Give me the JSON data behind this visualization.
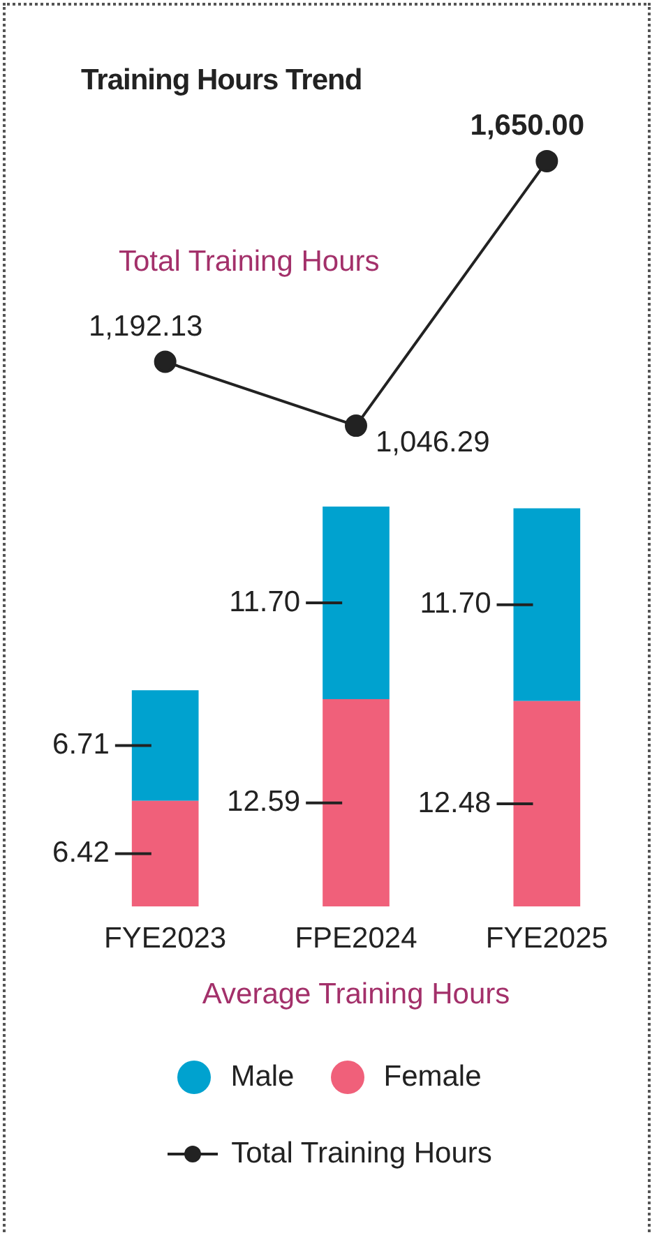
{
  "chart_data": [
    {
      "type": "line",
      "title": "Training Hours Trend",
      "subtitle": "Total Training Hours",
      "categories": [
        null,
        null,
        null
      ],
      "tick_labels": false,
      "legend": "bottom",
      "marker": "circle",
      "line_style": "solid",
      "data_labels": true,
      "series": [
        {
          "name": "Total Training Hours",
          "color": "#222222",
          "values": [
            1192.13,
            1046.29,
            1650.0
          ],
          "value_labels": [
            "1,192.13",
            "1,046.29",
            "1,650.00"
          ]
        }
      ]
    },
    {
      "type": "bar",
      "stacked": true,
      "xlabel": "Average Training Hours",
      "categories": [
        "FYE2023",
        "FPE2024",
        "FYE2025"
      ],
      "tick_labels": "x",
      "legend": "bottom",
      "data_labels": true,
      "series": [
        {
          "name": "Female",
          "color": "#f0607a",
          "values": [
            6.42,
            12.59,
            12.48
          ],
          "value_labels": [
            "6.42",
            "12.59",
            "12.48"
          ]
        },
        {
          "name": "Male",
          "color": "#00a2cf",
          "values": [
            6.71,
            11.7,
            11.7
          ],
          "value_labels": [
            "6.71",
            "11.70",
            "11.70"
          ]
        }
      ]
    }
  ]
}
